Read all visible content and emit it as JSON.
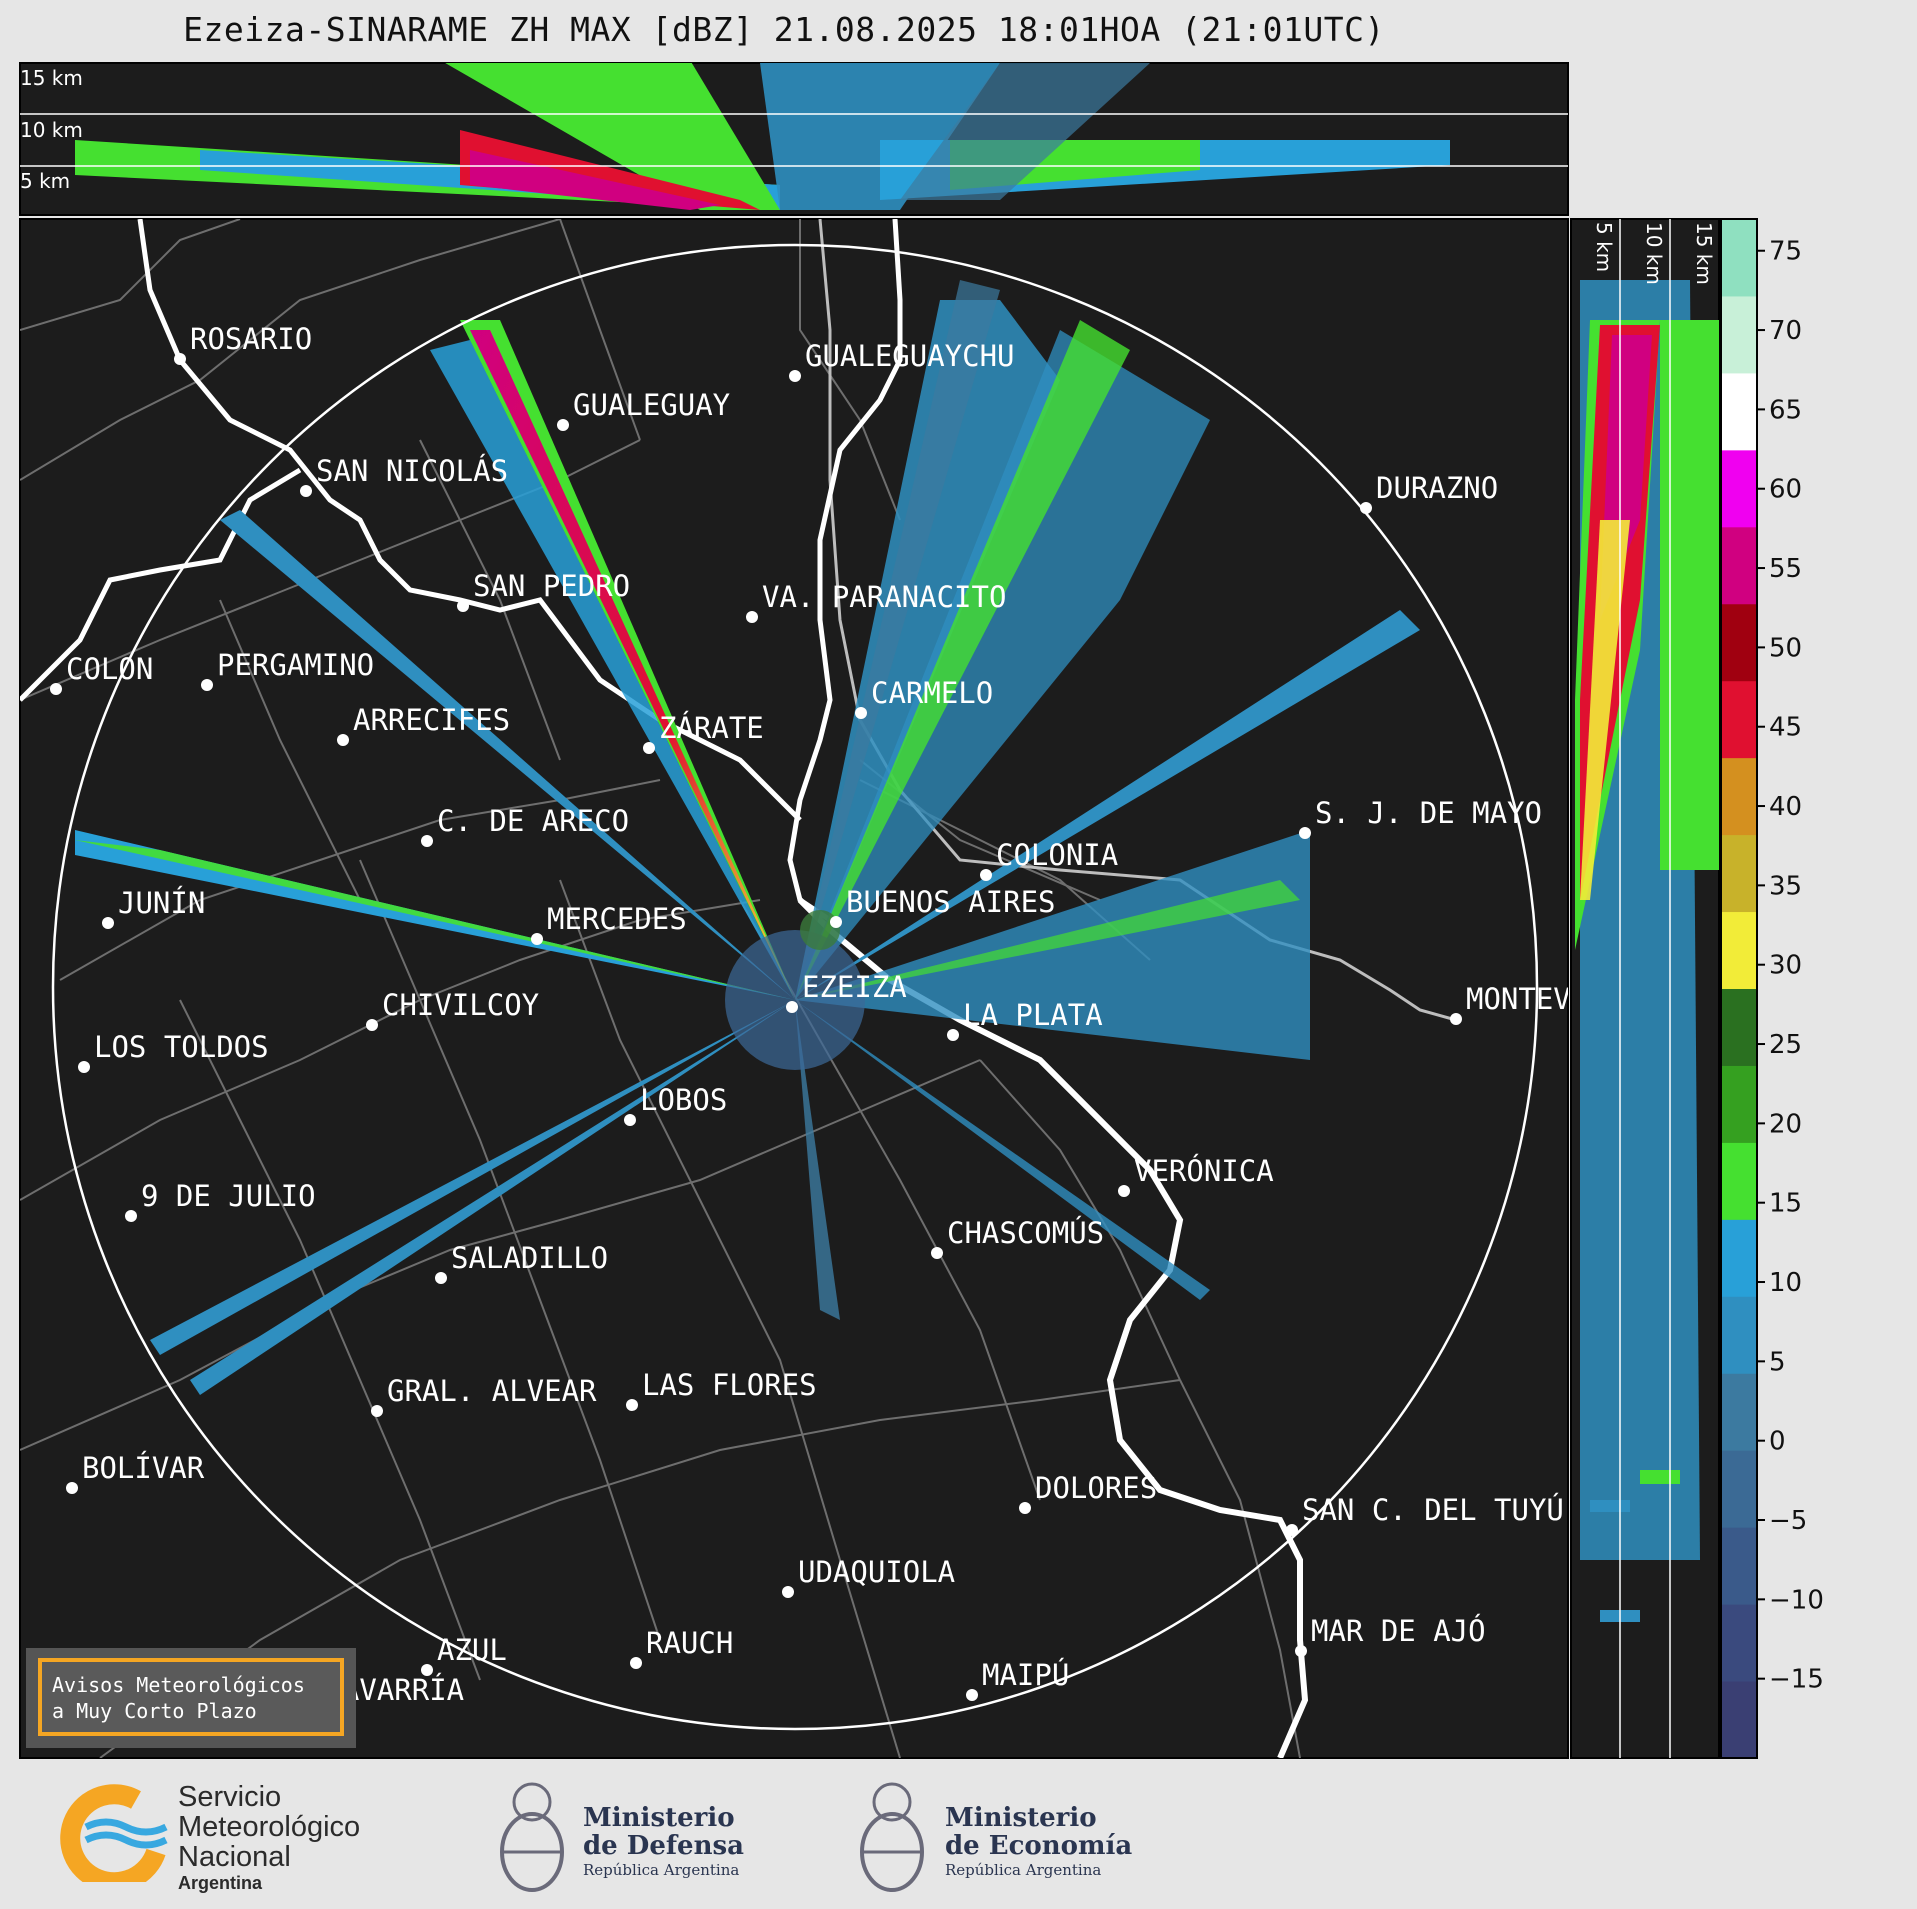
{
  "title": "Ezeiza-SINARAME ZH MAX [dBZ] 21.08.2025 18:01HOA (21:01UTC)",
  "top_panel_labels": [
    "15 km",
    "10 km",
    "5 km"
  ],
  "side_panel_labels": [
    "5 km",
    "10 km",
    "15 km"
  ],
  "cities": [
    {
      "name": "ROSARIO"
    },
    {
      "name": "GUALEGUAYCHU"
    },
    {
      "name": "GUALEGUAY"
    },
    {
      "name": "SAN NICOLÁS"
    },
    {
      "name": "DURAZNO"
    },
    {
      "name": "SAN PEDRO"
    },
    {
      "name": "VA. PARANACITO"
    },
    {
      "name": "COLON"
    },
    {
      "name": "PERGAMINO"
    },
    {
      "name": "CARMELO"
    },
    {
      "name": "ARRECIFES"
    },
    {
      "name": "ZÁRATE"
    },
    {
      "name": "C. DE ARECO"
    },
    {
      "name": "S. J. DE MAYO"
    },
    {
      "name": "COLONIA"
    },
    {
      "name": "JUNÍN"
    },
    {
      "name": "BUENOS AIRES"
    },
    {
      "name": "MERCEDES"
    },
    {
      "name": "EZEIZA"
    },
    {
      "name": "MONTEVIDEO"
    },
    {
      "name": "CHIVILCOY"
    },
    {
      "name": "LA PLATA"
    },
    {
      "name": "LOS TOLDOS"
    },
    {
      "name": "LOBOS"
    },
    {
      "name": "VERÓNICA"
    },
    {
      "name": "9 DE JULIO"
    },
    {
      "name": "CHASCOMÚS"
    },
    {
      "name": "SALADILLO"
    },
    {
      "name": "GRAL. ALVEAR"
    },
    {
      "name": "LAS FLORES"
    },
    {
      "name": "BOLÍVAR"
    },
    {
      "name": "DOLORES"
    },
    {
      "name": "SAN C. DEL TUYÚ"
    },
    {
      "name": "UDAQUIOLA"
    },
    {
      "name": "MAR DE AJÓ"
    },
    {
      "name": "AZUL"
    },
    {
      "name": "RAUCH"
    },
    {
      "name": "OLAVARRÍA"
    },
    {
      "name": "MAIPÚ"
    }
  ],
  "colorbar": {
    "ticks": [
      "75",
      "70",
      "65",
      "60",
      "55",
      "50",
      "45",
      "40",
      "35",
      "30",
      "25",
      "20",
      "15",
      "10",
      "5",
      "0",
      "−5",
      "−10",
      "−15"
    ],
    "range": [
      -20,
      77
    ],
    "colors": [
      "#3a3f73",
      "#3a4a7e",
      "#3a5a8a",
      "#3b6a95",
      "#3c7aa0",
      "#2f8fc0",
      "#28a0d8",
      "#45e030",
      "#35a020",
      "#2a7020",
      "#f2ec38",
      "#c8b22a",
      "#d4901f",
      "#e01030",
      "#a00010",
      "#d00080",
      "#f000f0",
      "#ffffff",
      "#c8f0d8",
      "#8fe0c0"
    ]
  },
  "aviso": {
    "line1": "Avisos Meteorológicos",
    "line2": "a Muy Corto Plazo"
  },
  "logos": {
    "smn": {
      "line1": "Servicio",
      "line2": "Meteorológico",
      "line3": "Nacional",
      "line4": "Argentina"
    },
    "defensa": {
      "line1": "Ministerio",
      "line2": "de Defensa",
      "line3": "República Argentina"
    },
    "economia": {
      "line1": "Ministerio",
      "line2": "de Economía",
      "line3": "República Argentina"
    }
  }
}
